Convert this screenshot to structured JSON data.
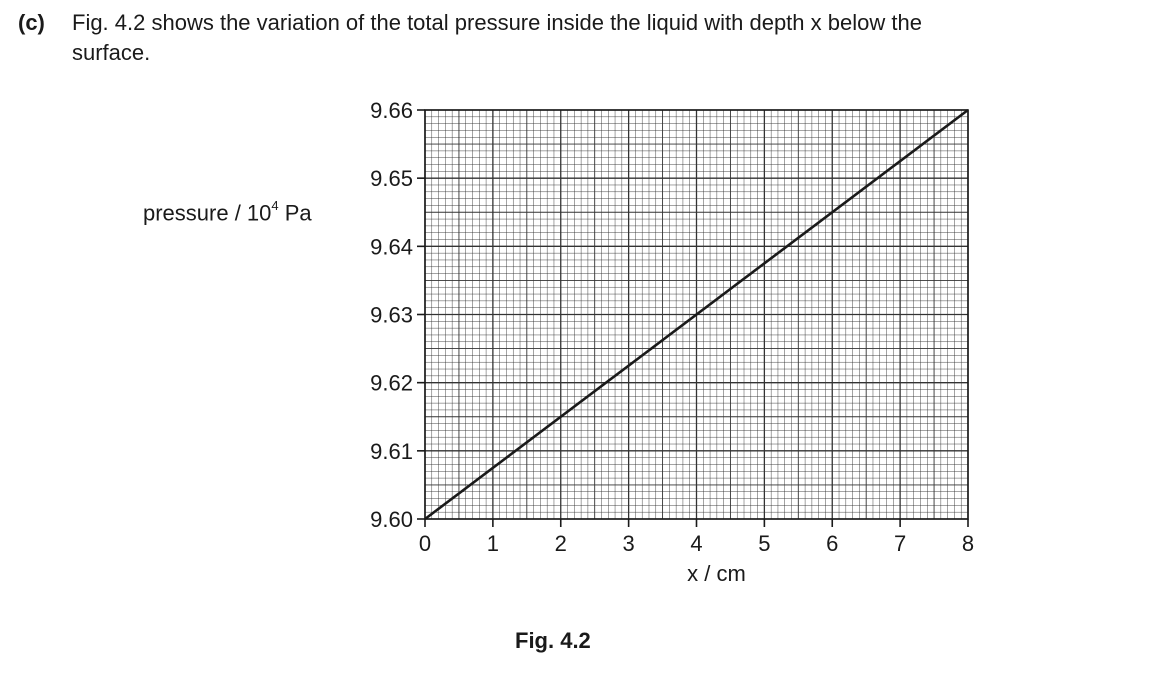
{
  "question": {
    "part_label": "(c)",
    "text_line1": "Fig. 4.2 shows the variation of the total pressure inside the liquid with depth x below the",
    "text_line2": "surface."
  },
  "figure_caption": "Fig. 4.2",
  "chart_data": {
    "type": "line",
    "title": "",
    "xlabel": "x / cm",
    "ylabel": "pressure / 10⁴ Pa",
    "ylabel_parts": {
      "text": "pressure / 10",
      "exp": "4",
      "unit": " Pa"
    },
    "xlim": [
      0,
      8
    ],
    "ylim": [
      9.6,
      9.66
    ],
    "x_ticks": [
      0,
      1,
      2,
      3,
      4,
      5,
      6,
      7,
      8
    ],
    "y_ticks": [
      9.6,
      9.61,
      9.62,
      9.63,
      9.64,
      9.65,
      9.66
    ],
    "y_tick_labels": [
      "9.60",
      "9.61",
      "9.62",
      "9.63",
      "9.64",
      "9.65",
      "9.66"
    ],
    "grid": true,
    "series": [
      {
        "x": [
          0,
          8
        ],
        "y": [
          9.6,
          9.66
        ]
      }
    ]
  }
}
